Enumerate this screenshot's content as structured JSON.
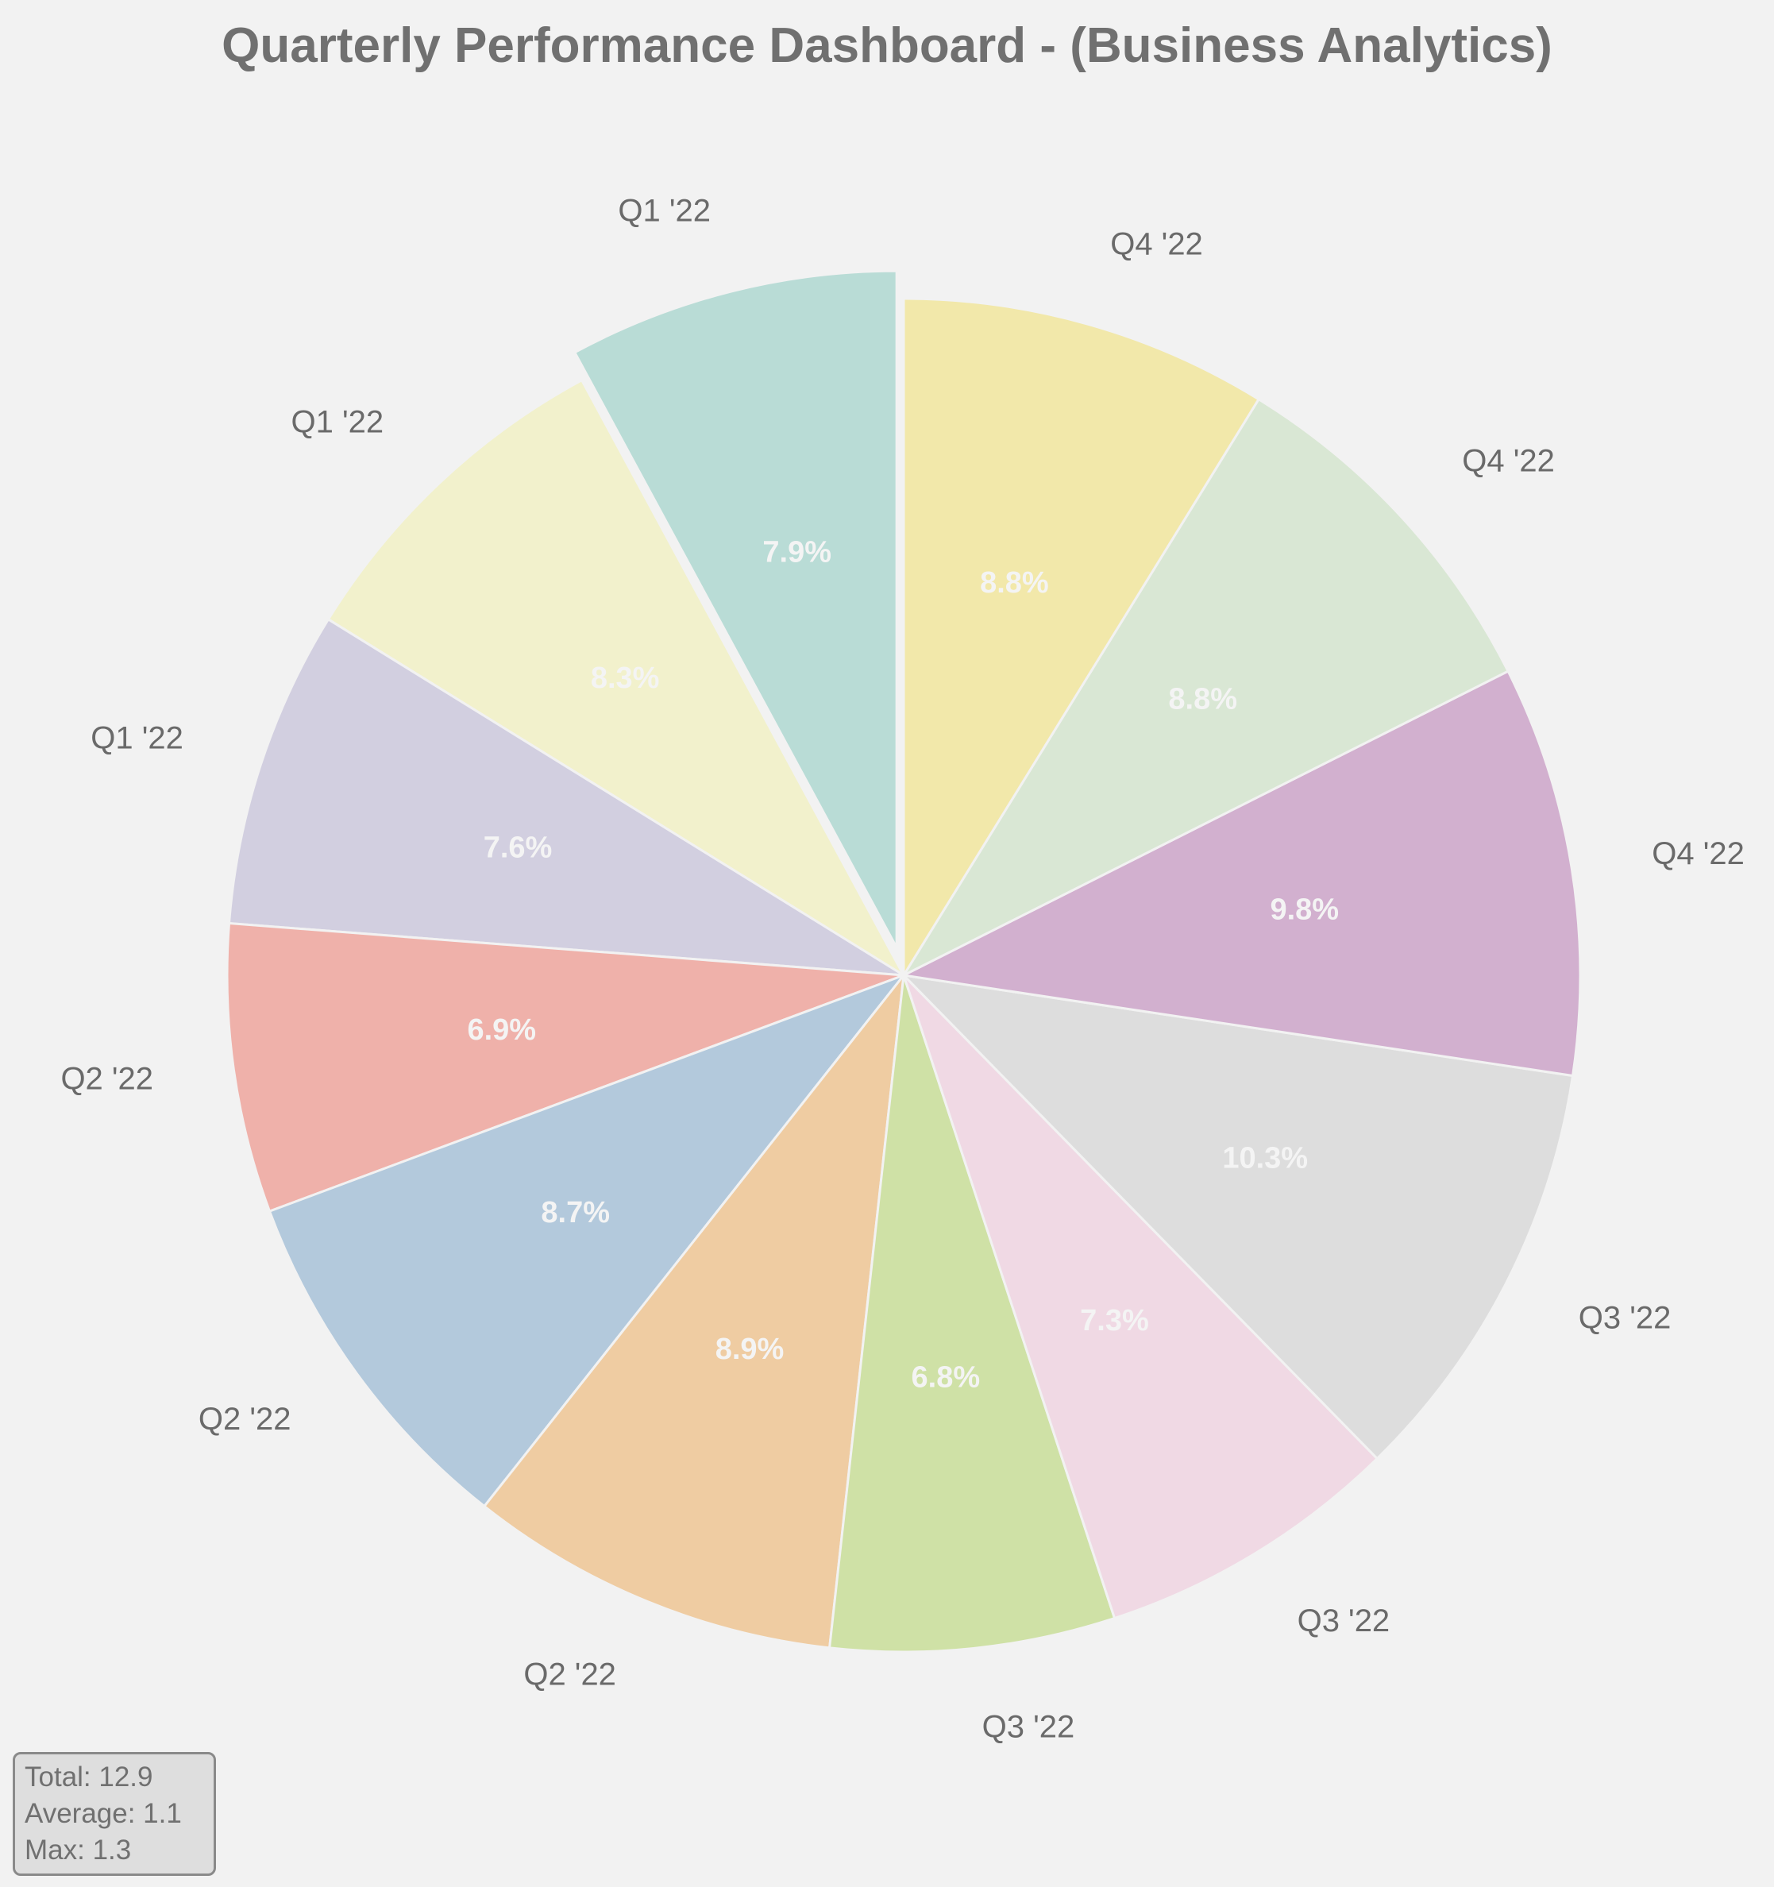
{
  "chart_data": {
    "type": "pie",
    "title": "Quarterly Performance Dashboard - (Business Analytics)",
    "labels": [
      "Q1 '22",
      "Q1 '22",
      "Q1 '22",
      "Q2 '22",
      "Q2 '22",
      "Q2 '22",
      "Q3 '22",
      "Q3 '22",
      "Q3 '22",
      "Q4 '22",
      "Q4 '22",
      "Q4 '22"
    ],
    "values": [
      7.9,
      8.3,
      7.6,
      6.9,
      8.7,
      8.9,
      6.8,
      7.3,
      10.3,
      9.8,
      8.8,
      8.8
    ],
    "percent_labels": [
      "7.9%",
      "8.3%",
      "7.6%",
      "6.9%",
      "8.7%",
      "8.9%",
      "6.8%",
      "7.3%",
      "10.3%",
      "9.8%",
      "8.8%",
      "8.8%"
    ],
    "colors": [
      "#b9dcd6",
      "#f2f1cc",
      "#d2cfe0",
      "#efb1aa",
      "#b3c9dc",
      "#efcca2",
      "#cfe1a6",
      "#f0d9e4",
      "#dddddd",
      "#d2b0cf",
      "#d9e7d4",
      "#f2e8aa"
    ],
    "exploded": [
      true,
      false,
      false,
      false,
      false,
      false,
      false,
      false,
      false,
      false,
      false,
      false
    ],
    "start_angle_deg": 90,
    "direction": "counterclockwise"
  },
  "stats": {
    "total": "Total: 12.9",
    "average": "Average: 1.1",
    "max": "Max: 1.3"
  }
}
